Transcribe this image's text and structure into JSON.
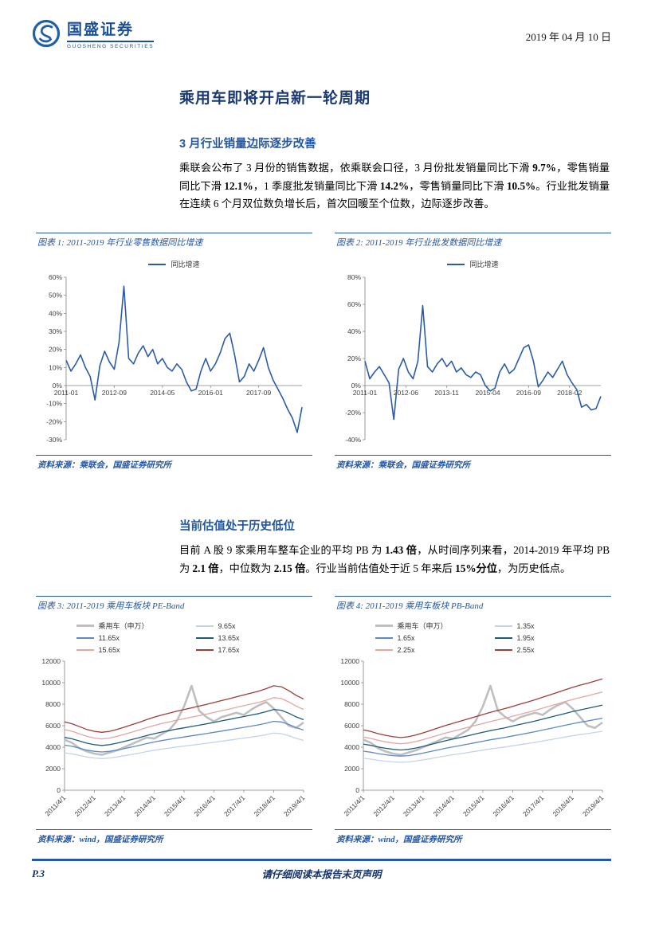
{
  "header": {
    "brand": "国盛证券",
    "brand_sub": "GUOSHENG SECURITIES",
    "date": "2019 年 04 月 10 日"
  },
  "title": "乘用车即将开启新一轮周期",
  "sections": [
    {
      "heading": "3 月行业销量边际逐步改善",
      "body_runs": [
        {
          "text": "乘联会公布了 3 月份的销售数据，依乘联会口径，3 月份批发销量同比下滑 ",
          "bold": false
        },
        {
          "text": "9.7%",
          "bold": true
        },
        {
          "text": "，零售销量同比下滑 ",
          "bold": false
        },
        {
          "text": "12.1%",
          "bold": true
        },
        {
          "text": "，1 季度批发销量同比下滑 ",
          "bold": false
        },
        {
          "text": "14.2%",
          "bold": true
        },
        {
          "text": "，零售销量同比下滑 ",
          "bold": false
        },
        {
          "text": "10.5%",
          "bold": true
        },
        {
          "text": "。行业批发销量在连续 6 个月双位数负增长后，首次回暖至个位数，边际逐步改善。",
          "bold": false
        }
      ]
    },
    {
      "heading": "当前估值处于历史低位",
      "body_runs": [
        {
          "text": "目前 A 股 9 家乘用车整车企业的平均 PB 为 ",
          "bold": false
        },
        {
          "text": "1.43 倍",
          "bold": true
        },
        {
          "text": "，从时间序列来看，2014-2019 年平均 PB 为 ",
          "bold": false
        },
        {
          "text": "2.1 倍",
          "bold": true
        },
        {
          "text": "，中位数为 ",
          "bold": false
        },
        {
          "text": "2.15 倍",
          "bold": true
        },
        {
          "text": "。行业当前估值处于近 5 年来后 ",
          "bold": false
        },
        {
          "text": "15%分位",
          "bold": true
        },
        {
          "text": "，为历史低点。",
          "bold": false
        }
      ]
    }
  ],
  "colors": {
    "accent_blue": "#2458a6",
    "heading_blue": "#2257a0",
    "line_blue": "#2a5caa",
    "band_gray": "#bfbfbf"
  },
  "chart_data": [
    {
      "caption": "图表 1: 2011-2019 年行业零售数据同比增速",
      "source": "资料来源：乘联会，国盛证券研究所",
      "type": "line",
      "ylim": [
        -30,
        60
      ],
      "ytick_step": 10,
      "ytick_suffix": "%",
      "x_labels": [
        {
          "text": "2011-01",
          "pos": 0
        },
        {
          "text": "2012-09",
          "pos": 10
        },
        {
          "text": "2014-05",
          "pos": 20
        },
        {
          "text": "2016-01",
          "pos": 30
        },
        {
          "text": "2017-09",
          "pos": 40
        }
      ],
      "series": [
        {
          "name": "同比增速",
          "color": "#2a5caa",
          "width": 1.6,
          "values": [
            14,
            8,
            12,
            17,
            10,
            5,
            -8,
            11,
            19,
            13,
            9,
            24,
            55,
            15,
            12,
            18,
            22,
            16,
            20,
            12,
            15,
            10,
            8,
            12,
            9,
            2,
            -3,
            -2,
            8,
            15,
            8,
            12,
            18,
            26,
            29,
            17,
            2,
            5,
            12,
            8,
            14,
            21,
            10,
            3,
            -2,
            -7,
            -13,
            -18,
            -26,
            -12
          ]
        }
      ]
    },
    {
      "caption": "图表 2: 2011-2019 年行业批发数据同比增速",
      "source": "资料来源：乘联会，国盛证券研究所",
      "type": "line",
      "ylim": [
        -40,
        80
      ],
      "ytick_step": 20,
      "ytick_suffix": "%",
      "x_labels": [
        {
          "text": "2011-01",
          "pos": 0
        },
        {
          "text": "2012-06",
          "pos": 8.5
        },
        {
          "text": "2013-11",
          "pos": 17
        },
        {
          "text": "2015-04",
          "pos": 25.5
        },
        {
          "text": "2016-09",
          "pos": 34
        },
        {
          "text": "2018-02",
          "pos": 42.5
        }
      ],
      "series": [
        {
          "name": "同比增速",
          "color": "#2a5caa",
          "width": 1.6,
          "values": [
            18,
            5,
            10,
            14,
            8,
            2,
            -25,
            12,
            20,
            10,
            5,
            18,
            59,
            14,
            10,
            16,
            20,
            14,
            18,
            10,
            13,
            8,
            6,
            10,
            8,
            0,
            -4,
            -2,
            10,
            16,
            9,
            12,
            20,
            28,
            30,
            18,
            -1,
            4,
            10,
            6,
            12,
            18,
            8,
            2,
            -3,
            -16,
            -14,
            -18,
            -17,
            -8
          ]
        }
      ]
    },
    {
      "caption": "图表 3: 2011-2019 乘用车板块 PE-Band",
      "source": "资料来源：wind，国盛证券研究所",
      "type": "band",
      "ylim": [
        0,
        12000
      ],
      "ytick_step": 2000,
      "ytick_suffix": "",
      "rotate_x_labels": true,
      "x_labels": [
        {
          "text": "2011/4/1",
          "pos": 0
        },
        {
          "text": "2012/4/1",
          "pos": 4
        },
        {
          "text": "2013/4/1",
          "pos": 8
        },
        {
          "text": "2014/4/1",
          "pos": 12
        },
        {
          "text": "2015/4/1",
          "pos": 16
        },
        {
          "text": "2016/4/1",
          "pos": 20
        },
        {
          "text": "2017/4/1",
          "pos": 24
        },
        {
          "text": "2018/4/1",
          "pos": 28
        },
        {
          "text": "2019/4/1",
          "pos": 32
        }
      ],
      "index_series": {
        "name": "乘用车（申万）",
        "color": "#bfbfbf",
        "width": 2.6,
        "values": [
          4700,
          4400,
          3900,
          3600,
          3400,
          3300,
          3500,
          3700,
          4000,
          4300,
          4600,
          4900,
          4800,
          5200,
          5600,
          6400,
          7800,
          9700,
          7400,
          6800,
          6400,
          6800,
          7000,
          7200,
          7000,
          7500,
          7900,
          8200,
          7600,
          6800,
          6000,
          5800,
          6300
        ]
      },
      "band_base": [
        360,
        350,
        335,
        320,
        310,
        305,
        310,
        320,
        332,
        345,
        358,
        372,
        385,
        396,
        406,
        416,
        425,
        434,
        443,
        452,
        462,
        472,
        482,
        492,
        502,
        512,
        522,
        535,
        550,
        545,
        525,
        500,
        480
      ],
      "band_multiples": [
        9.65,
        11.65,
        13.65,
        15.65,
        17.65
      ],
      "band_labels": [
        "9.65x",
        "11.65x",
        "13.65x",
        "15.65x",
        "17.65x"
      ],
      "band_colors": [
        "#c3d3ea",
        "#5d8ac2",
        "#1f5c78",
        "#e2a6a4",
        "#9e3d3a"
      ]
    },
    {
      "caption": "图表 4: 2011-2019 乘用车板块 PB-Band",
      "source": "资料来源：wind，国盛证券研究所",
      "type": "band",
      "ylim": [
        0,
        12000
      ],
      "ytick_step": 2000,
      "ytick_suffix": "",
      "rotate_x_labels": true,
      "x_labels": [
        {
          "text": "2011/4/1",
          "pos": 0
        },
        {
          "text": "2012/4/1",
          "pos": 4
        },
        {
          "text": "2013/4/1",
          "pos": 8
        },
        {
          "text": "2014/4/1",
          "pos": 12
        },
        {
          "text": "2015/4/1",
          "pos": 16
        },
        {
          "text": "2016/4/1",
          "pos": 20
        },
        {
          "text": "2017/4/1",
          "pos": 24
        },
        {
          "text": "2018/4/1",
          "pos": 28
        },
        {
          "text": "2019/4/1",
          "pos": 32
        }
      ],
      "index_series": {
        "name": "乘用车（申万）",
        "color": "#bfbfbf",
        "width": 2.6,
        "values": [
          4700,
          4400,
          3900,
          3600,
          3400,
          3300,
          3500,
          3700,
          4000,
          4300,
          4600,
          4900,
          4800,
          5200,
          5600,
          6400,
          7800,
          9700,
          7400,
          6800,
          6400,
          6800,
          7000,
          7200,
          7000,
          7500,
          7900,
          8200,
          7600,
          6800,
          6000,
          5800,
          6300
        ]
      },
      "band_base": [
        2200,
        2140,
        2060,
        2000,
        1950,
        1920,
        1950,
        2010,
        2090,
        2180,
        2270,
        2360,
        2440,
        2520,
        2600,
        2680,
        2760,
        2840,
        2910,
        2980,
        3060,
        3140,
        3220,
        3300,
        3390,
        3480,
        3570,
        3660,
        3750,
        3830,
        3900,
        3980,
        4060
      ],
      "band_multiples": [
        1.35,
        1.65,
        1.95,
        2.25,
        2.55
      ],
      "band_labels": [
        "1.35x",
        "1.65x",
        "1.95x",
        "2.25x",
        "2.55x"
      ],
      "band_colors": [
        "#c3d3ea",
        "#5d8ac2",
        "#1f5c78",
        "#e2a6a4",
        "#9e3d3a"
      ]
    }
  ],
  "footer": {
    "page": "P.3",
    "disclaimer": "请仔细阅读本报告末页声明"
  }
}
